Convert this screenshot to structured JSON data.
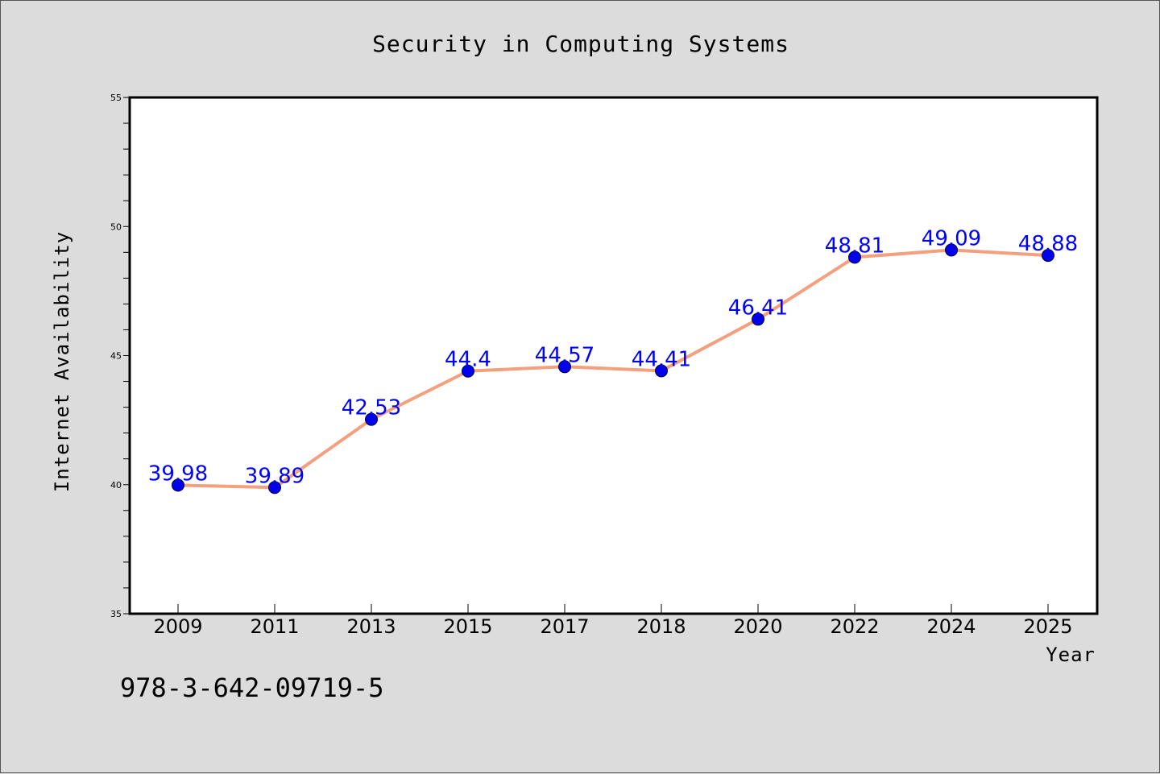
{
  "chart_data": {
    "type": "line",
    "title": "Security in Computing Systems",
    "xlabel": "Year",
    "ylabel": "Internet Availability",
    "categories": [
      "2009",
      "2011",
      "2013",
      "2015",
      "2017",
      "2018",
      "2020",
      "2022",
      "2024",
      "2025"
    ],
    "values": [
      39.98,
      39.89,
      42.53,
      44.4,
      44.57,
      44.41,
      46.41,
      48.81,
      49.09,
      48.88
    ],
    "data_labels": [
      "39.98",
      "39.89",
      "42.53",
      "44.4",
      "44.57",
      "44.41",
      "46.41",
      "48.81",
      "49.09",
      "48.88"
    ],
    "ylim": [
      35,
      55
    ],
    "yticks": [
      "35",
      "40",
      "45",
      "50",
      "55"
    ],
    "grid": false,
    "legend": "none",
    "line_color": "#f4a07e",
    "marker_color": "#0000ee",
    "label_color": "#0000ff"
  },
  "footer": {
    "isbn": "978-3-642-09719-5"
  }
}
